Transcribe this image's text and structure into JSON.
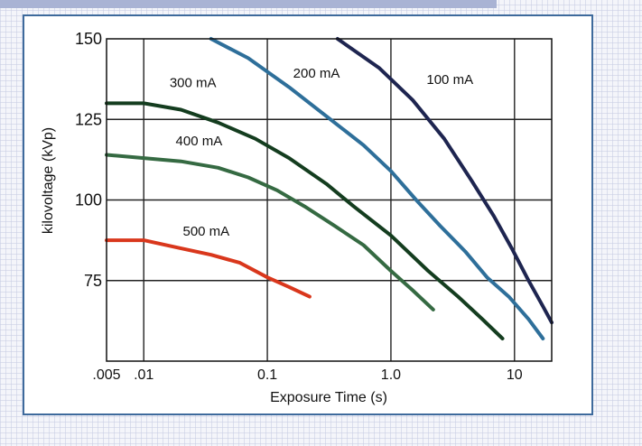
{
  "chart_data": {
    "type": "line",
    "title": "",
    "xlabel": "Exposure Time (s)",
    "ylabel": "kilovoltage (kVp)",
    "xscale": "log",
    "xlim": [
      0.005,
      20
    ],
    "ylim": [
      50,
      150
    ],
    "grid": true,
    "x_ticks": [
      {
        "value": 0.005,
        "label": ".005"
      },
      {
        "value": 0.01,
        "label": ".01"
      },
      {
        "value": 0.1,
        "label": "0.1"
      },
      {
        "value": 1.0,
        "label": "1.0"
      },
      {
        "value": 10,
        "label": "10"
      }
    ],
    "y_ticks": [
      {
        "value": 150,
        "label": "150"
      },
      {
        "value": 125,
        "label": "125"
      },
      {
        "value": 100,
        "label": "100"
      },
      {
        "value": 75,
        "label": "75"
      }
    ],
    "series": [
      {
        "name": "100 mA",
        "color": "#1e2550",
        "points": [
          [
            0.37,
            150
          ],
          [
            0.8,
            141
          ],
          [
            1.5,
            131
          ],
          [
            2.7,
            119
          ],
          [
            4.5,
            106
          ],
          [
            6.8,
            95
          ],
          [
            9.5,
            85
          ],
          [
            13,
            75
          ],
          [
            17,
            67
          ],
          [
            20,
            62
          ]
        ]
      },
      {
        "name": "200 mA",
        "color": "#2e6f9a",
        "points": [
          [
            0.035,
            150
          ],
          [
            0.07,
            144
          ],
          [
            0.15,
            135
          ],
          [
            0.3,
            126
          ],
          [
            0.6,
            117
          ],
          [
            1.0,
            109
          ],
          [
            1.6,
            100
          ],
          [
            2.5,
            92
          ],
          [
            4.0,
            84
          ],
          [
            6.0,
            76
          ],
          [
            9.0,
            70
          ],
          [
            13,
            63
          ],
          [
            17,
            57
          ]
        ]
      },
      {
        "name": "300 mA",
        "color": "#143d1f",
        "points": [
          [
            0.005,
            130
          ],
          [
            0.01,
            130
          ],
          [
            0.02,
            128
          ],
          [
            0.04,
            124
          ],
          [
            0.08,
            119
          ],
          [
            0.15,
            113
          ],
          [
            0.3,
            105
          ],
          [
            0.5,
            98
          ],
          [
            1.0,
            89
          ],
          [
            2.0,
            78
          ],
          [
            3.5,
            70
          ],
          [
            5.5,
            63
          ],
          [
            8,
            57
          ]
        ]
      },
      {
        "name": "400 mA",
        "color": "#356a42",
        "points": [
          [
            0.005,
            114
          ],
          [
            0.01,
            113
          ],
          [
            0.02,
            112
          ],
          [
            0.04,
            110
          ],
          [
            0.07,
            107
          ],
          [
            0.12,
            103
          ],
          [
            0.2,
            98
          ],
          [
            0.35,
            92
          ],
          [
            0.6,
            86
          ],
          [
            1.0,
            78
          ],
          [
            1.5,
            72
          ],
          [
            2.2,
            66
          ]
        ]
      },
      {
        "name": "500 mA",
        "color": "#d9371c",
        "points": [
          [
            0.005,
            87.5
          ],
          [
            0.01,
            87.5
          ],
          [
            0.02,
            85
          ],
          [
            0.035,
            83
          ],
          [
            0.06,
            80.5
          ],
          [
            0.1,
            76
          ],
          [
            0.15,
            73
          ],
          [
            0.22,
            70
          ]
        ]
      }
    ],
    "annotations": [
      {
        "text": "300 mA",
        "x": 0.025,
        "y": 135
      },
      {
        "text": "200 mA",
        "x": 0.25,
        "y": 138
      },
      {
        "text": "100 mA",
        "x": 3.0,
        "y": 136
      },
      {
        "text": "400 mA",
        "x": 0.028,
        "y": 117
      },
      {
        "text": "500 mA",
        "x": 0.032,
        "y": 89
      }
    ]
  }
}
